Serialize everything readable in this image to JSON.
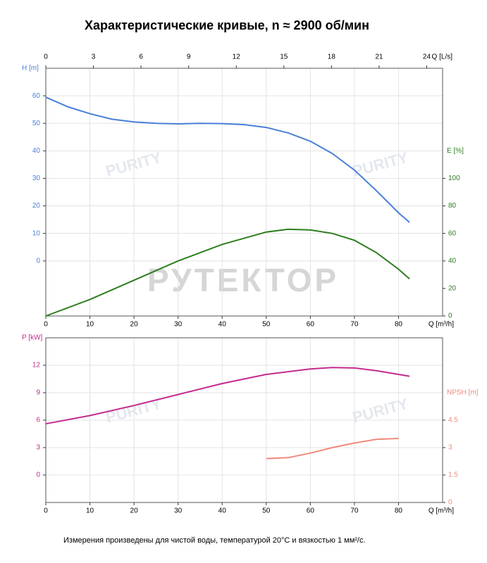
{
  "title": "Характеристические кривые, n ≈ 2900 об/мин",
  "note": "Измерения произведены для чистой воды, температурой 20°C и вязкостью 1 мм²/с.",
  "watermarks": [
    "РУТЕКТОР",
    "PURITY"
  ],
  "chart_data": [
    {
      "type": "line",
      "xlabel": "Q [m³/h]",
      "xlim": [
        0,
        90
      ],
      "xticks": [
        0,
        10,
        20,
        30,
        40,
        50,
        60,
        70,
        80
      ],
      "x2label": "Q [L/s]",
      "x2lim": [
        0,
        25
      ],
      "x2ticks": [
        0,
        3,
        6,
        9,
        12,
        15,
        18,
        21,
        24
      ],
      "ylabel": "H [m]",
      "ylim": [
        -20,
        70
      ],
      "yticks": [
        0,
        10,
        20,
        30,
        40,
        50,
        60
      ],
      "ycolor": "#4a7fd8",
      "y2label": "E [%]",
      "y2lim": [
        0,
        180
      ],
      "y2ticks": [
        0,
        20,
        40,
        60,
        80,
        100
      ],
      "y2color": "#2e7d1e",
      "grid": true,
      "series": [
        {
          "name": "H",
          "color": "#4a7fd8",
          "x": [
            0,
            5,
            10,
            15,
            20,
            25,
            30,
            35,
            40,
            45,
            50,
            55,
            60,
            65,
            70,
            75,
            80,
            82.5
          ],
          "values": [
            59.5,
            56,
            53.5,
            51.5,
            50.5,
            50,
            49.8,
            50,
            49.9,
            49.5,
            48.5,
            46.5,
            43.5,
            39,
            33,
            25.5,
            17.5,
            14
          ]
        },
        {
          "name": "E",
          "color": "#2e7d1e",
          "axis": "y2",
          "x": [
            0,
            10,
            20,
            30,
            40,
            50,
            55,
            60,
            65,
            70,
            75,
            80,
            82.5
          ],
          "values": [
            0,
            12,
            26,
            40,
            52,
            61,
            63,
            62.5,
            60,
            55,
            46,
            34,
            27
          ]
        }
      ]
    },
    {
      "type": "line",
      "xlabel": "Q [m³/h]",
      "xlim": [
        0,
        90
      ],
      "xticks": [
        0,
        10,
        20,
        30,
        40,
        50,
        60,
        70,
        80
      ],
      "ylabel": "P [kW]",
      "ylim": [
        -3,
        15
      ],
      "yticks": [
        0,
        3,
        6,
        9,
        12
      ],
      "ycolor": "#c42a8e",
      "y2label": "NPSH [m]",
      "y2lim": [
        0,
        9
      ],
      "y2ticks": [
        0,
        1.5,
        3,
        4.5
      ],
      "y2color": "#f08a7a",
      "grid": true,
      "series": [
        {
          "name": "P",
          "color": "#c42a8e",
          "x": [
            0,
            10,
            20,
            30,
            40,
            50,
            60,
            65,
            70,
            75,
            80,
            82.5
          ],
          "values": [
            5.6,
            6.5,
            7.6,
            8.8,
            10,
            11,
            11.6,
            11.75,
            11.7,
            11.4,
            11,
            10.8
          ]
        },
        {
          "name": "NPSH",
          "color": "#f08a7a",
          "axis": "y2",
          "x": [
            50,
            55,
            60,
            65,
            70,
            75,
            80
          ],
          "values": [
            2.4,
            2.45,
            2.7,
            3,
            3.25,
            3.45,
            3.5
          ]
        }
      ]
    }
  ]
}
